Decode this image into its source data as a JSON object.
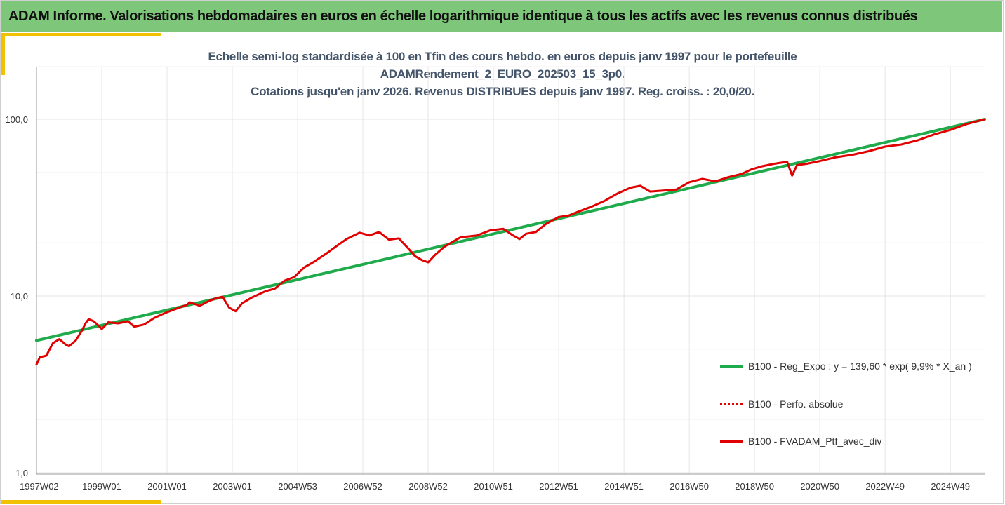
{
  "header": {
    "title": "ADAM Informe. Valorisations hebdomadaires en euros en échelle logarithmique identique à tous les actifs avec les revenus connus distribués"
  },
  "colors": {
    "header_bg": "#7dc67a",
    "accent": "#f2c200",
    "regression": "#1faa4b",
    "portfolio": "#e00000",
    "title_text": "#44546a"
  },
  "chart_data": {
    "type": "line",
    "title_lines": [
      "Echelle semi-log standardisée à 100 en Tfin des cours hebdo.  en euros depuis janv 1997 pour le portefeuille",
      "ADAMRendement_2_EURO_202503_15_3p0.",
      "Cotations jusqu'en janv 2026. Revenus DISTRIBUES depuis janv 1997. Reg. croiss. : 20,0/20."
    ],
    "y_scale": "log",
    "ylim": [
      1,
      100
    ],
    "y_ticks": [
      1,
      10,
      100
    ],
    "y_tick_labels": [
      "1,0",
      "10,0",
      "100,0"
    ],
    "x_range": [
      1997.0,
      2026.05
    ],
    "x_ticks": [
      1997.0,
      1999.0,
      2001.0,
      2003.0,
      2005.0,
      2007.0,
      2009.0,
      2011.0,
      2013.0,
      2015.0,
      2017.0,
      2019.0,
      2021.0,
      2023.0,
      2025.0
    ],
    "x_tick_labels": [
      "1997W02",
      "1999W01",
      "2001W01",
      "2003W01",
      "2004W53",
      "2006W52",
      "2008W52",
      "2010W51",
      "2012W51",
      "2014W51",
      "2016W50",
      "2018W50",
      "2020W50",
      "2022W49",
      "2024W49"
    ],
    "grid": true,
    "legend_position": "bottom-right",
    "legend": [
      "B100 - Reg_Expo : y = 139,60 * exp( 9,9% *  X_an )",
      "B100 - Perfo. absolue",
      "B100 - FVADAM_Ptf_avec_div"
    ],
    "series": [
      {
        "name": "B100 - Reg_Expo : y = 139,60 * exp( 9,9% *  X_an )",
        "style": "solid-green",
        "x": [
          1997.0,
          2026.05
        ],
        "y": [
          5.6,
          100.0
        ]
      },
      {
        "name": "B100 - FVADAM_Ptf_avec_div",
        "style": "solid-red",
        "x": [
          1997.0,
          1997.1,
          1997.3,
          1997.5,
          1997.7,
          1997.9,
          1998.0,
          1998.2,
          1998.4,
          1998.5,
          1998.6,
          1998.75,
          1998.9,
          1999.0,
          1999.2,
          1999.5,
          1999.8,
          2000.0,
          2000.3,
          2000.6,
          2000.8,
          2001.0,
          2001.3,
          2001.6,
          2001.7,
          2002.0,
          2002.3,
          2002.5,
          2002.7,
          2002.9,
          2003.1,
          2003.3,
          2003.6,
          2004.0,
          2004.3,
          2004.6,
          2004.9,
          2005.2,
          2005.5,
          2005.9,
          2006.2,
          2006.5,
          2006.9,
          2007.2,
          2007.5,
          2007.8,
          2008.1,
          2008.4,
          2008.6,
          2008.8,
          2009.0,
          2009.2,
          2009.5,
          2009.8,
          2010.0,
          2010.5,
          2010.9,
          2011.3,
          2011.6,
          2011.8,
          2012.0,
          2012.3,
          2012.6,
          2013.0,
          2013.3,
          2013.6,
          2014.0,
          2014.4,
          2014.8,
          2015.2,
          2015.5,
          2015.8,
          2016.2,
          2016.6,
          2017.0,
          2017.4,
          2017.8,
          2018.2,
          2018.6,
          2018.9,
          2019.2,
          2019.6,
          2020.0,
          2020.15,
          2020.3,
          2020.6,
          2021.0,
          2021.5,
          2022.0,
          2022.5,
          2023.0,
          2023.5,
          2024.0,
          2024.5,
          2025.0,
          2025.5,
          2026.05
        ],
        "y": [
          4.1,
          4.5,
          4.6,
          5.4,
          5.7,
          5.3,
          5.2,
          5.6,
          6.4,
          7.0,
          7.4,
          7.2,
          6.8,
          6.5,
          7.1,
          7.0,
          7.2,
          6.7,
          6.9,
          7.5,
          7.8,
          8.1,
          8.5,
          8.9,
          9.2,
          8.8,
          9.4,
          9.7,
          9.9,
          8.6,
          8.2,
          9.1,
          9.8,
          10.6,
          11.0,
          12.2,
          12.8,
          14.5,
          15.6,
          17.5,
          19.2,
          21.0,
          22.8,
          22.0,
          23.0,
          20.8,
          21.2,
          18.5,
          16.8,
          16.0,
          15.5,
          17.0,
          19.0,
          20.5,
          21.5,
          22.0,
          23.5,
          24.0,
          22.0,
          21.0,
          22.5,
          23.0,
          25.5,
          28.0,
          28.5,
          30.0,
          32.0,
          34.5,
          38.0,
          41.0,
          42.0,
          39.0,
          39.5,
          40.0,
          44.0,
          46.0,
          44.5,
          47.0,
          49.0,
          52.0,
          54.0,
          56.0,
          57.5,
          48.0,
          55.0,
          56.0,
          58.0,
          61.0,
          63.0,
          66.0,
          70.0,
          72.0,
          76.0,
          82.0,
          87.0,
          94.0,
          100.0
        ]
      }
    ]
  }
}
